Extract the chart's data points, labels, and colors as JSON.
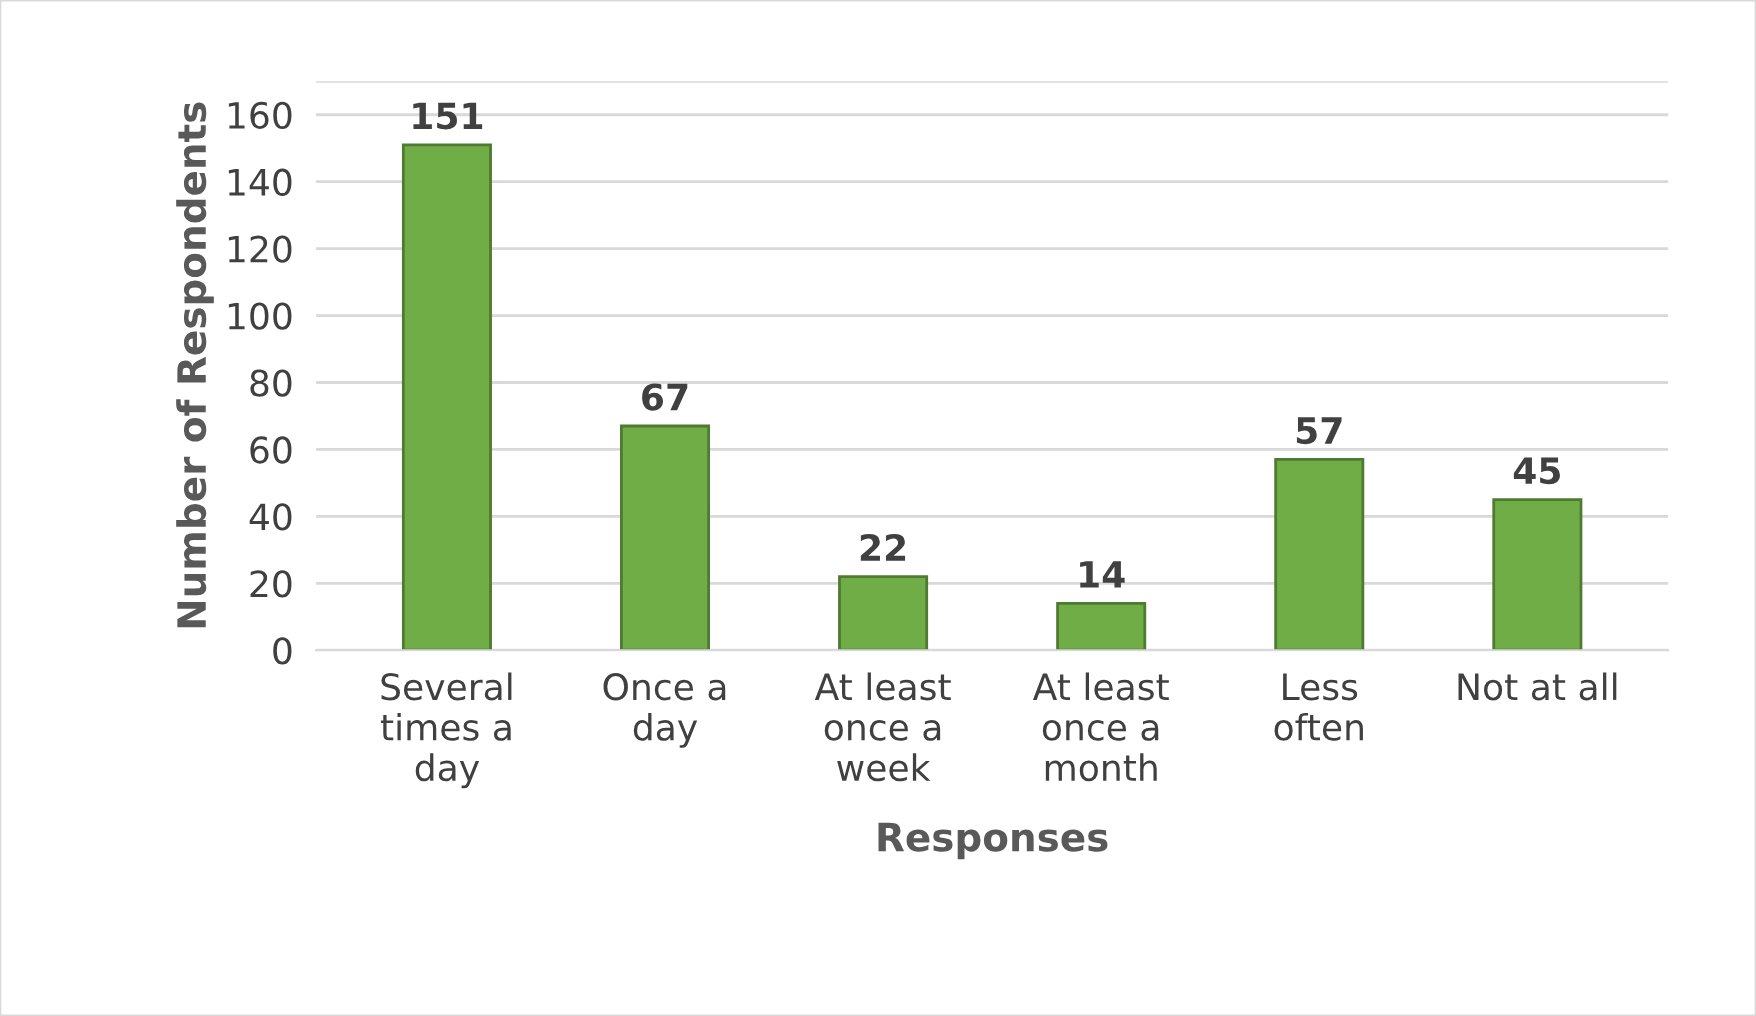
{
  "chart_data": {
    "type": "bar",
    "xlabel": "Responses",
    "ylabel": "Number of Respondents",
    "categories": [
      "Several\ntimes a\nday",
      "Once a\nday",
      "At least\nonce a\nweek",
      "At least\nonce a\nmonth",
      "Less\noften",
      "Not at all"
    ],
    "values": [
      151,
      67,
      22,
      14,
      57,
      45
    ],
    "color": "#70ad47",
    "ylim": [
      0,
      170
    ],
    "yticks": [
      0,
      20,
      40,
      60,
      80,
      100,
      120,
      140,
      160,
      {
        "value": 170,
        "label": null
      }
    ],
    "grid": "y",
    "data_labels": true
  }
}
